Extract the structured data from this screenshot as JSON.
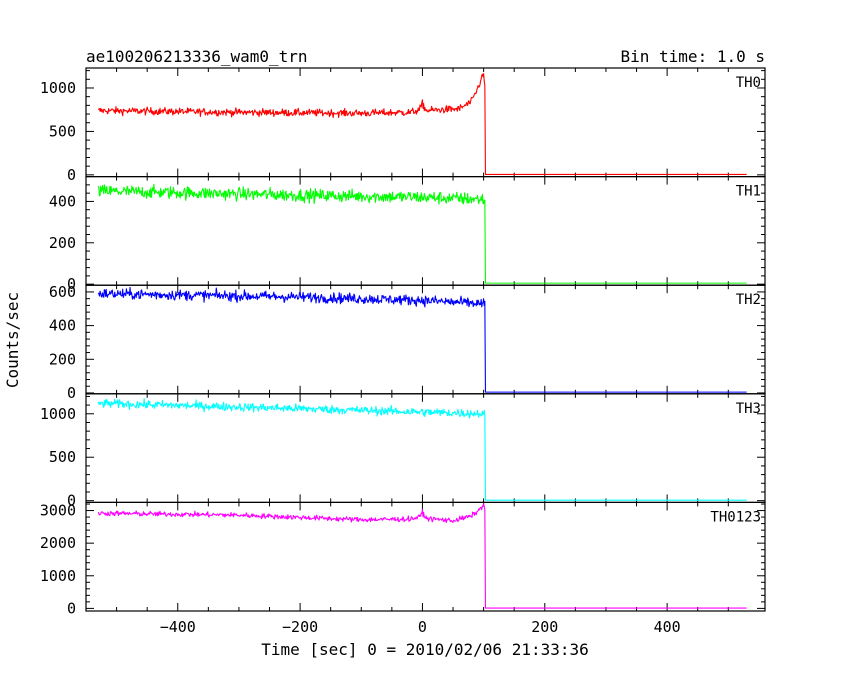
{
  "chart_data": {
    "type": "line",
    "title": "ae100206213336_wam0_trn",
    "bin_label": "Bin time: 1.0 s",
    "xlabel": "Time [sec] 0 = 2010/02/06 21:33:36",
    "ylabel": "Counts/sec",
    "xlim": [
      -550,
      560
    ],
    "xticks": [
      -400,
      -200,
      0,
      200,
      400
    ],
    "grid": false,
    "legend": "panel labels at top-right",
    "event_time": 102,
    "end_time": 530,
    "start_time": -530,
    "series": [
      {
        "name": "TH0",
        "color": "#ff0000",
        "ylim": [
          -20,
          1230
        ],
        "yticks": [
          0,
          500,
          1000
        ],
        "anchors": [
          [
            -530,
            740
          ],
          [
            -300,
            720
          ],
          [
            -100,
            710
          ],
          [
            -20,
            720
          ],
          [
            -5,
            745
          ],
          [
            0,
            820
          ],
          [
            6,
            740
          ],
          [
            60,
            760
          ],
          [
            80,
            840
          ],
          [
            90,
            990
          ],
          [
            97,
            1120
          ],
          [
            100,
            1150
          ],
          [
            102,
            1030
          ]
        ],
        "noise": 30,
        "after": 5
      },
      {
        "name": "TH1",
        "color": "#00ff00",
        "ylim": [
          -5,
          520
        ],
        "yticks": [
          0,
          200,
          400
        ],
        "anchors": [
          [
            -530,
            450
          ],
          [
            -200,
            430
          ],
          [
            0,
            420
          ],
          [
            100,
            410
          ],
          [
            102,
            400
          ]
        ],
        "noise": 22,
        "after": 5
      },
      {
        "name": "TH2",
        "color": "#0000ff",
        "ylim": [
          -5,
          640
        ],
        "yticks": [
          0,
          200,
          400,
          600
        ],
        "anchors": [
          [
            -530,
            590
          ],
          [
            -200,
            570
          ],
          [
            0,
            550
          ],
          [
            100,
            530
          ],
          [
            102,
            520
          ]
        ],
        "noise": 22,
        "after": 5
      },
      {
        "name": "TH3",
        "color": "#00ffff",
        "ylim": [
          -20,
          1230
        ],
        "yticks": [
          0,
          500,
          1000
        ],
        "anchors": [
          [
            -530,
            1120
          ],
          [
            -200,
            1060
          ],
          [
            0,
            1020
          ],
          [
            100,
            1000
          ],
          [
            102,
            980
          ]
        ],
        "noise": 35,
        "after": 5
      },
      {
        "name": "TH0123",
        "color": "#ff00ff",
        "ylim": [
          -80,
          3250
        ],
        "yticks": [
          0,
          1000,
          2000,
          3000
        ],
        "anchors": [
          [
            -530,
            2920
          ],
          [
            -300,
            2860
          ],
          [
            -100,
            2720
          ],
          [
            -20,
            2740
          ],
          [
            -5,
            2800
          ],
          [
            0,
            2950
          ],
          [
            6,
            2760
          ],
          [
            50,
            2690
          ],
          [
            80,
            2830
          ],
          [
            95,
            3050
          ],
          [
            100,
            3200
          ],
          [
            102,
            3050
          ]
        ],
        "noise": 55,
        "after": 10
      }
    ]
  }
}
